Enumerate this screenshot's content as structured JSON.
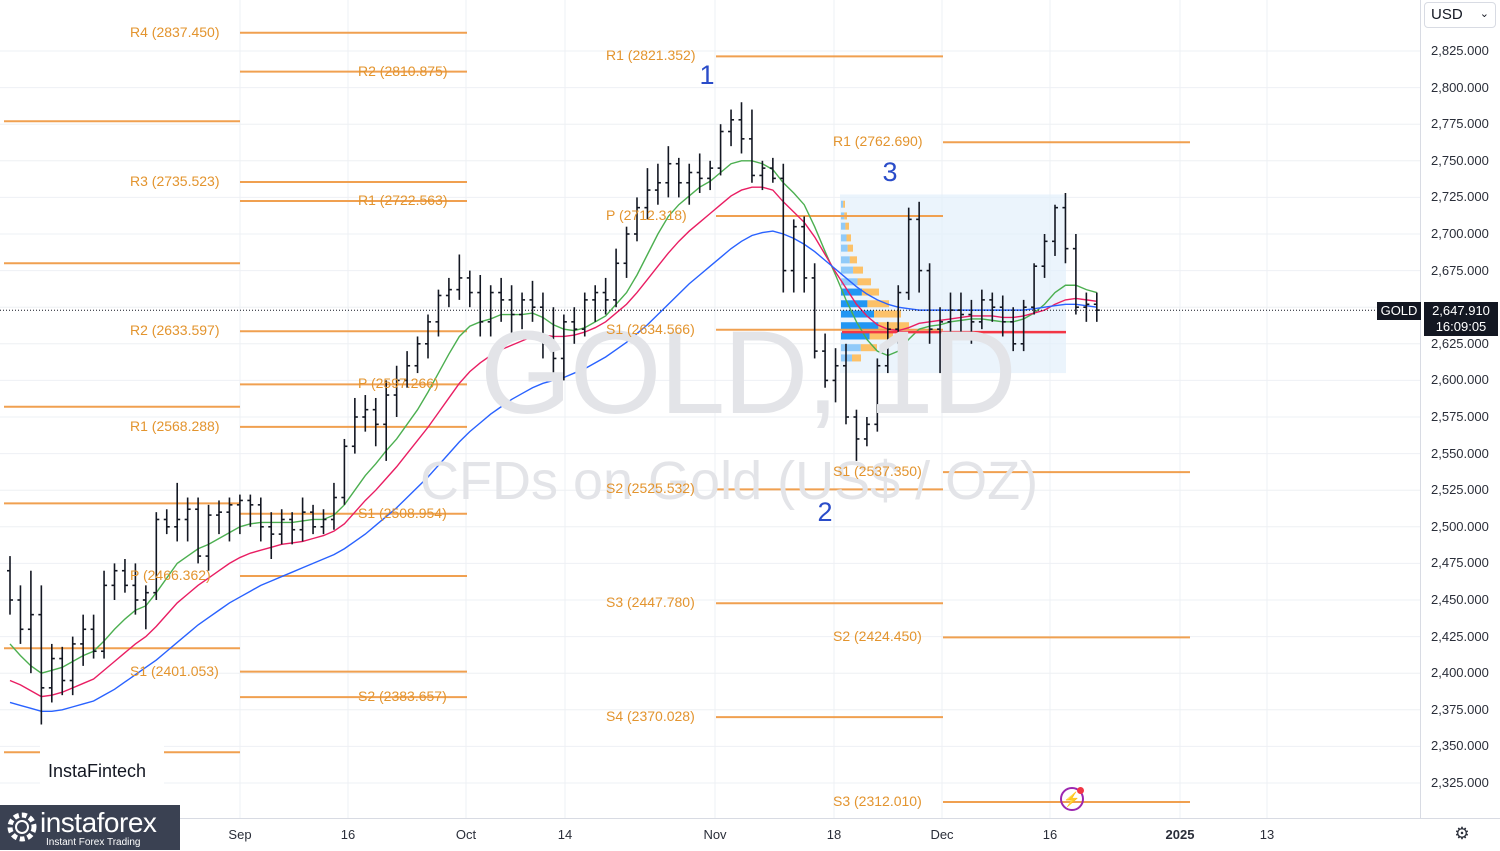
{
  "symbol": "GOLD",
  "watermark": {
    "symbol_tf": "GOLD, 1D",
    "description": "CFDs on Gold (US$ / OZ)"
  },
  "currency": "USD",
  "last_price": {
    "symbol": "GOLD",
    "price": "2,647.910",
    "countdown": "16:09:05"
  },
  "branding": {
    "instafintech": "InstaFintech",
    "instaforex": "instaforex",
    "instaforex_sub": "Instant Forex Trading"
  },
  "price_axis": [
    "2,825.000",
    "2,800.000",
    "2,775.000",
    "2,750.000",
    "2,725.000",
    "2,700.000",
    "2,675.000",
    "2,650.000",
    "2,625.000",
    "2,600.000",
    "2,575.000",
    "2,550.000",
    "2,525.000",
    "2,500.000",
    "2,475.000",
    "2,450.000",
    "2,425.000",
    "2,400.000",
    "2,375.000",
    "2,350.000",
    "2,325.000"
  ],
  "time_axis": [
    {
      "label": "Sep",
      "bold": false
    },
    {
      "label": "16",
      "bold": false
    },
    {
      "label": "Oct",
      "bold": false
    },
    {
      "label": "14",
      "bold": false
    },
    {
      "label": "Nov",
      "bold": false
    },
    {
      "label": "18",
      "bold": false
    },
    {
      "label": "Dec",
      "bold": false
    },
    {
      "label": "16",
      "bold": false
    },
    {
      "label": "2025",
      "bold": true
    },
    {
      "label": "13",
      "bold": false
    }
  ],
  "pivot_levels": [
    {
      "label": "R4 (2837.450)",
      "price": 2837.45,
      "period": "sep"
    },
    {
      "label": "R2 (2810.875)",
      "price": 2810.875,
      "period": "oct"
    },
    {
      "label": "R1 (2821.352)",
      "price": 2821.352,
      "period": "nov"
    },
    {
      "label": "R1 (2762.690)",
      "price": 2762.69,
      "period": "dec"
    },
    {
      "label": "R3 (2735.523)",
      "price": 2735.523,
      "period": "sep"
    },
    {
      "label": "R1 (2722.563)",
      "price": 2722.563,
      "period": "oct"
    },
    {
      "label": "P (2712.318)",
      "price": 2712.318,
      "period": "nov"
    },
    {
      "label": "R2 (2633.597)",
      "price": 2633.597,
      "period": "sep"
    },
    {
      "label": "S1 (2634.566)",
      "price": 2634.566,
      "period": "nov"
    },
    {
      "label": "P (2597.266)",
      "price": 2597.266,
      "period": "oct"
    },
    {
      "label": "R1 (2568.288)",
      "price": 2568.288,
      "period": "sep"
    },
    {
      "label": "S1 (2537.350)",
      "price": 2537.35,
      "period": "dec"
    },
    {
      "label": "S2 (2525.532)",
      "price": 2525.532,
      "period": "nov"
    },
    {
      "label": "S1 (2508.954)",
      "price": 2508.954,
      "period": "oct"
    },
    {
      "label": "P (2466.362)",
      "price": 2466.362,
      "period": "sep"
    },
    {
      "label": "S3 (2447.780)",
      "price": 2447.78,
      "period": "nov"
    },
    {
      "label": "S2 (2424.450)",
      "price": 2424.45,
      "period": "dec"
    },
    {
      "label": "S1 (2401.053)",
      "price": 2401.053,
      "period": "sep"
    },
    {
      "label": "S2 (2383.657)",
      "price": 2383.657,
      "period": "oct"
    },
    {
      "label": "S4 (2370.028)",
      "price": 2370.028,
      "period": "nov"
    },
    {
      "label": "S3 (2312.010)",
      "price": 2312.01,
      "period": "dec"
    }
  ],
  "wave_labels": [
    "1",
    "2",
    "3"
  ],
  "colors": {
    "pivot": "#f0a050",
    "pivot_text": "#e3942e",
    "bar": "#131722",
    "ma_fast": "#4caf50",
    "ma_mid": "#e91e63",
    "ma_slow": "#2962ff",
    "wave": "#2a4cc9",
    "poc": "#f23645",
    "volume_profile": "#2196f3",
    "volume_value_area": "#ffb74d"
  },
  "chart_data": {
    "type": "ohlc",
    "symbol": "GOLD",
    "ylim": [
      2315,
      2845
    ],
    "ohlc": [
      [
        2470,
        2480,
        2440,
        2450
      ],
      [
        2450,
        2460,
        2420,
        2430
      ],
      [
        2430,
        2470,
        2400,
        2440
      ],
      [
        2440,
        2460,
        2365,
        2390
      ],
      [
        2390,
        2420,
        2380,
        2410
      ],
      [
        2410,
        2418,
        2385,
        2395
      ],
      [
        2395,
        2425,
        2385,
        2420
      ],
      [
        2420,
        2440,
        2405,
        2430
      ],
      [
        2430,
        2440,
        2410,
        2415
      ],
      [
        2415,
        2470,
        2410,
        2460
      ],
      [
        2460,
        2475,
        2450,
        2470
      ],
      [
        2470,
        2478,
        2455,
        2460
      ],
      [
        2460,
        2475,
        2440,
        2450
      ],
      [
        2450,
        2460,
        2430,
        2455
      ],
      [
        2455,
        2510,
        2450,
        2505
      ],
      [
        2505,
        2512,
        2495,
        2500
      ],
      [
        2500,
        2530,
        2490,
        2505
      ],
      [
        2505,
        2520,
        2490,
        2512
      ],
      [
        2512,
        2520,
        2475,
        2480
      ],
      [
        2480,
        2515,
        2470,
        2508
      ],
      [
        2508,
        2518,
        2495,
        2510
      ],
      [
        2510,
        2520,
        2490,
        2515
      ],
      [
        2515,
        2522,
        2495,
        2518
      ],
      [
        2518,
        2522,
        2500,
        2515
      ],
      [
        2515,
        2520,
        2490,
        2500
      ],
      [
        2500,
        2510,
        2478,
        2495
      ],
      [
        2495,
        2512,
        2488,
        2505
      ],
      [
        2505,
        2510,
        2488,
        2498
      ],
      [
        2498,
        2520,
        2490,
        2510
      ],
      [
        2510,
        2515,
        2495,
        2500
      ],
      [
        2500,
        2512,
        2495,
        2505
      ],
      [
        2505,
        2530,
        2498,
        2520
      ],
      [
        2520,
        2560,
        2515,
        2555
      ],
      [
        2555,
        2588,
        2550,
        2575
      ],
      [
        2575,
        2590,
        2565,
        2580
      ],
      [
        2580,
        2588,
        2555,
        2570
      ],
      [
        2570,
        2600,
        2545,
        2590
      ],
      [
        2590,
        2610,
        2575,
        2600
      ],
      [
        2600,
        2620,
        2595,
        2610
      ],
      [
        2610,
        2630,
        2605,
        2625
      ],
      [
        2625,
        2645,
        2615,
        2640
      ],
      [
        2640,
        2662,
        2630,
        2658
      ],
      [
        2658,
        2670,
        2650,
        2662
      ],
      [
        2662,
        2686,
        2655,
        2670
      ],
      [
        2670,
        2675,
        2650,
        2660
      ],
      [
        2660,
        2672,
        2630,
        2640
      ],
      [
        2640,
        2665,
        2630,
        2660
      ],
      [
        2660,
        2670,
        2640,
        2655
      ],
      [
        2655,
        2665,
        2630,
        2645
      ],
      [
        2645,
        2660,
        2635,
        2655
      ],
      [
        2655,
        2668,
        2640,
        2650
      ],
      [
        2650,
        2660,
        2615,
        2625
      ],
      [
        2625,
        2650,
        2605,
        2615
      ],
      [
        2615,
        2645,
        2600,
        2640
      ],
      [
        2640,
        2650,
        2625,
        2635
      ],
      [
        2635,
        2660,
        2630,
        2655
      ],
      [
        2655,
        2665,
        2640,
        2660
      ],
      [
        2660,
        2670,
        2645,
        2655
      ],
      [
        2655,
        2690,
        2650,
        2680
      ],
      [
        2680,
        2705,
        2670,
        2700
      ],
      [
        2700,
        2725,
        2695,
        2718
      ],
      [
        2718,
        2745,
        2710,
        2730
      ],
      [
        2730,
        2748,
        2720,
        2735
      ],
      [
        2735,
        2760,
        2725,
        2748
      ],
      [
        2748,
        2752,
        2725,
        2735
      ],
      [
        2735,
        2748,
        2720,
        2742
      ],
      [
        2742,
        2755,
        2728,
        2738
      ],
      [
        2738,
        2750,
        2730,
        2745
      ],
      [
        2745,
        2775,
        2740,
        2770
      ],
      [
        2770,
        2785,
        2760,
        2778
      ],
      [
        2778,
        2790,
        2755,
        2765
      ],
      [
        2765,
        2785,
        2735,
        2740
      ],
      [
        2740,
        2750,
        2730,
        2745
      ],
      [
        2745,
        2752,
        2735,
        2738
      ],
      [
        2738,
        2748,
        2660,
        2675
      ],
      [
        2675,
        2710,
        2660,
        2705
      ],
      [
        2705,
        2712,
        2660,
        2670
      ],
      [
        2670,
        2680,
        2615,
        2620
      ],
      [
        2620,
        2632,
        2595,
        2600
      ],
      [
        2600,
        2622,
        2585,
        2610
      ],
      [
        2610,
        2625,
        2570,
        2575
      ],
      [
        2575,
        2580,
        2545,
        2560
      ],
      [
        2560,
        2575,
        2555,
        2570
      ],
      [
        2570,
        2615,
        2565,
        2610
      ],
      [
        2610,
        2640,
        2605,
        2635
      ],
      [
        2635,
        2665,
        2625,
        2660
      ],
      [
        2660,
        2718,
        2655,
        2710
      ],
      [
        2710,
        2722,
        2660,
        2675
      ],
      [
        2675,
        2680,
        2625,
        2635
      ],
      [
        2635,
        2650,
        2605,
        2640
      ],
      [
        2640,
        2660,
        2630,
        2648
      ],
      [
        2648,
        2660,
        2632,
        2645
      ],
      [
        2645,
        2655,
        2625,
        2640
      ],
      [
        2640,
        2662,
        2635,
        2655
      ],
      [
        2655,
        2660,
        2640,
        2650
      ],
      [
        2650,
        2658,
        2630,
        2640
      ],
      [
        2640,
        2650,
        2620,
        2625
      ],
      [
        2625,
        2655,
        2620,
        2650
      ],
      [
        2650,
        2680,
        2645,
        2678
      ],
      [
        2678,
        2700,
        2670,
        2695
      ],
      [
        2695,
        2720,
        2685,
        2718
      ],
      [
        2718,
        2728,
        2680,
        2690
      ],
      [
        2690,
        2700,
        2645,
        2650
      ],
      [
        2650,
        2660,
        2640,
        2652
      ],
      [
        2652,
        2660,
        2640,
        2648
      ]
    ],
    "moving_averages": [
      {
        "period": "fast",
        "values": [
          2420,
          2412,
          2405,
          2400,
          2402,
          2404,
          2408,
          2412,
          2415,
          2422,
          2430,
          2437,
          2443,
          2446,
          2455,
          2465,
          2475,
          2480,
          2485,
          2488,
          2492,
          2496,
          2500,
          2502,
          2503,
          2503,
          2503,
          2503,
          2504,
          2505,
          2505,
          2508,
          2515,
          2525,
          2535,
          2543,
          2552,
          2560,
          2570,
          2580,
          2592,
          2605,
          2618,
          2630,
          2637,
          2640,
          2642,
          2645,
          2645,
          2645,
          2646,
          2643,
          2638,
          2635,
          2634,
          2636,
          2640,
          2644,
          2652,
          2660,
          2672,
          2686,
          2700,
          2712,
          2720,
          2726,
          2732,
          2736,
          2742,
          2748,
          2750,
          2750,
          2748,
          2744,
          2735,
          2728,
          2720,
          2705,
          2688,
          2672,
          2655,
          2640,
          2628,
          2620,
          2617,
          2620,
          2628,
          2635,
          2637,
          2638,
          2640,
          2641,
          2642,
          2642,
          2641,
          2640,
          2640,
          2642,
          2646,
          2652,
          2660,
          2665,
          2665,
          2662,
          2660
        ]
      },
      {
        "period": "mid",
        "values": [
          2395,
          2392,
          2388,
          2384,
          2385,
          2387,
          2390,
          2393,
          2396,
          2402,
          2408,
          2414,
          2420,
          2425,
          2432,
          2440,
          2448,
          2454,
          2460,
          2465,
          2470,
          2475,
          2479,
          2482,
          2484,
          2486,
          2488,
          2489,
          2490,
          2492,
          2494,
          2497,
          2502,
          2510,
          2518,
          2525,
          2533,
          2541,
          2550,
          2559,
          2568,
          2578,
          2588,
          2598,
          2606,
          2612,
          2617,
          2621,
          2624,
          2627,
          2630,
          2631,
          2630,
          2630,
          2631,
          2633,
          2636,
          2640,
          2646,
          2652,
          2660,
          2669,
          2678,
          2687,
          2695,
          2702,
          2708,
          2714,
          2720,
          2726,
          2730,
          2732,
          2732,
          2730,
          2722,
          2715,
          2708,
          2698,
          2686,
          2674,
          2663,
          2652,
          2644,
          2638,
          2635,
          2634,
          2636,
          2639,
          2640,
          2641,
          2642,
          2643,
          2644,
          2644,
          2644,
          2643,
          2643,
          2644,
          2646,
          2648,
          2652,
          2655,
          2656,
          2655,
          2654
        ]
      },
      {
        "period": "slow",
        "values": [
          2380,
          2378,
          2376,
          2374,
          2374,
          2375,
          2377,
          2379,
          2381,
          2385,
          2389,
          2394,
          2399,
          2404,
          2409,
          2415,
          2421,
          2427,
          2433,
          2438,
          2443,
          2448,
          2452,
          2456,
          2460,
          2463,
          2466,
          2469,
          2472,
          2475,
          2478,
          2481,
          2485,
          2490,
          2495,
          2501,
          2507,
          2513,
          2520,
          2527,
          2534,
          2542,
          2550,
          2558,
          2565,
          2571,
          2577,
          2582,
          2587,
          2591,
          2595,
          2598,
          2600,
          2602,
          2605,
          2608,
          2612,
          2616,
          2621,
          2626,
          2632,
          2638,
          2645,
          2652,
          2659,
          2666,
          2672,
          2678,
          2684,
          2690,
          2695,
          2699,
          2701,
          2702,
          2700,
          2697,
          2693,
          2688,
          2682,
          2676,
          2670,
          2664,
          2659,
          2655,
          2652,
          2650,
          2649,
          2648,
          2648,
          2648,
          2648,
          2648,
          2648,
          2648,
          2648,
          2648,
          2648,
          2648,
          2649,
          2650,
          2651,
          2652,
          2652,
          2651,
          2650
        ]
      }
    ],
    "volume_profile": [
      {
        "price": 2720,
        "volume": 2
      },
      {
        "price": 2712,
        "volume": 3
      },
      {
        "price": 2705,
        "volume": 4
      },
      {
        "price": 2697,
        "volume": 5
      },
      {
        "price": 2690,
        "volume": 6
      },
      {
        "price": 2682,
        "volume": 8
      },
      {
        "price": 2675,
        "volume": 11
      },
      {
        "price": 2667,
        "volume": 15
      },
      {
        "price": 2660,
        "volume": 19
      },
      {
        "price": 2652,
        "volume": 24
      },
      {
        "price": 2645,
        "volume": 30
      },
      {
        "price": 2637,
        "volume": 34
      },
      {
        "price": 2630,
        "volume": 26
      },
      {
        "price": 2622,
        "volume": 18
      },
      {
        "price": 2615,
        "volume": 10
      }
    ],
    "poc_price": 2637,
    "value_area": [
      2625,
      2665
    ],
    "pivot_points": [
      2837.45,
      2810.875,
      2821.352,
      2762.69,
      2735.523,
      2722.563,
      2712.318,
      2633.597,
      2634.566,
      2597.266,
      2568.288,
      2537.35,
      2525.532,
      2508.954,
      2466.362,
      2447.78,
      2424.45,
      2401.053,
      2383.657,
      2370.028,
      2312.01
    ]
  }
}
